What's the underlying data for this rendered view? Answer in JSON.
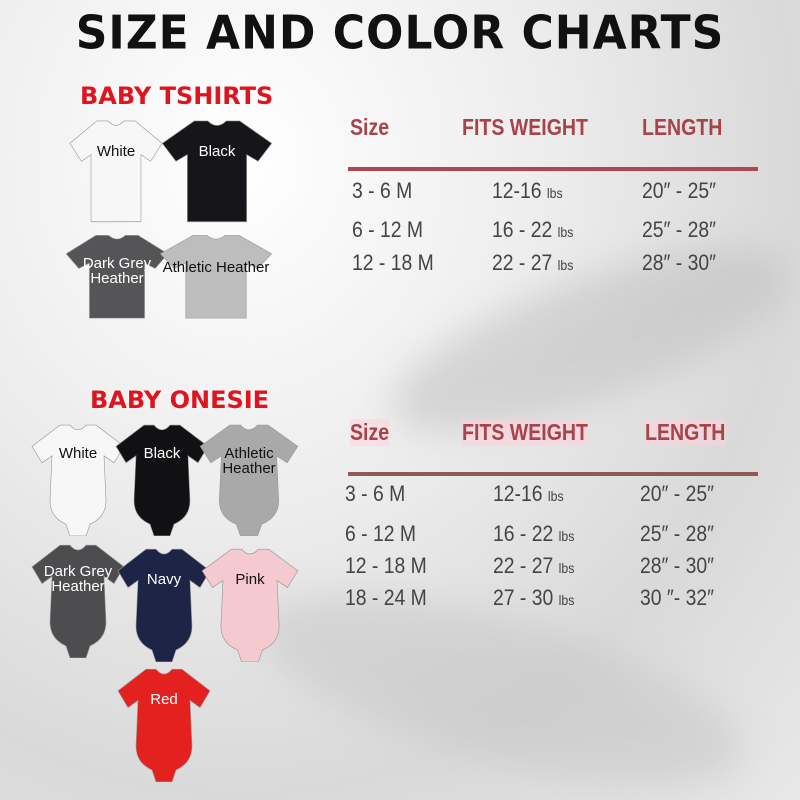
{
  "title": "SIZE AND COLOR CHARTS",
  "tshirts": {
    "heading": "BABY TSHIRTS",
    "items": [
      {
        "label": "White",
        "color": "#f7f7f7",
        "text": "#111"
      },
      {
        "label": "Black",
        "color": "#15151a",
        "text": "#fff"
      },
      {
        "label": "Dark Grey Heather",
        "color": "#555557",
        "text": "#fff"
      },
      {
        "label": "Athletic Heather",
        "color": "#bdbdbd",
        "text": "#111"
      }
    ],
    "table": {
      "headers": [
        "Size",
        "FITS WEIGHT",
        "LENGTH"
      ],
      "rows": [
        {
          "size": "3 - 6 M",
          "weight": "12-16",
          "unit": "lbs",
          "length": "20″ - 25″"
        },
        {
          "size": "6 - 12 M",
          "weight": "16 - 22",
          "unit": "lbs",
          "length": "25″ - 28″"
        },
        {
          "size": "12 - 18 M",
          "weight": "22 - 27",
          "unit": "lbs",
          "length": "28″ - 30″"
        }
      ]
    }
  },
  "onesies": {
    "heading": "BABY ONESIE",
    "items": [
      {
        "label": "White",
        "color": "#f7f7f7",
        "text": "#111"
      },
      {
        "label": "Black",
        "color": "#111114",
        "text": "#fff"
      },
      {
        "label": "Athletic Heather",
        "color": "#a9a9a9",
        "text": "#111"
      },
      {
        "label": "Dark Grey Heather",
        "color": "#4d4d50",
        "text": "#fff"
      },
      {
        "label": "Navy",
        "color": "#1d2445",
        "text": "#fff"
      },
      {
        "label": "Pink",
        "color": "#f4c9d0",
        "text": "#111"
      },
      {
        "label": "Red",
        "color": "#e3211f",
        "text": "#fff"
      }
    ],
    "table": {
      "headers": [
        "Size",
        "FITS WEIGHT",
        "LENGTH"
      ],
      "rows": [
        {
          "size": "3 - 6 M",
          "weight": "12-16",
          "unit": "lbs",
          "length": "20″ - 25″"
        },
        {
          "size": "6 - 12 M",
          "weight": "16 - 22",
          "unit": "lbs",
          "length": "25″ - 28″"
        },
        {
          "size": "12 - 18 M",
          "weight": "22 - 27",
          "unit": "lbs",
          "length": "28″ - 30″"
        },
        {
          "size": "18 - 24 M",
          "weight": "27 - 30",
          "unit": "lbs",
          "length": "30 ″- 32″"
        }
      ]
    }
  }
}
